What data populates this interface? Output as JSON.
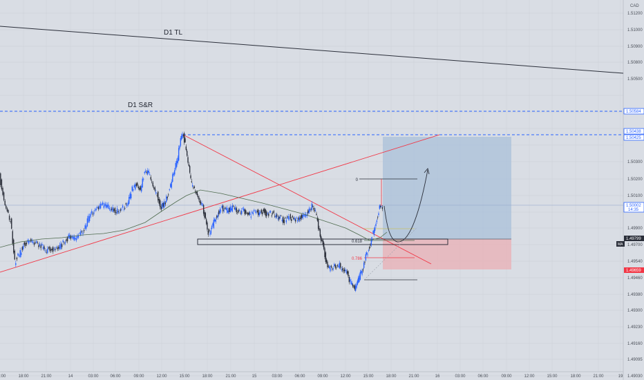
{
  "chart_data": {
    "type": "candlestick",
    "currency": "CAD",
    "y_ticks": [
      "1.51200",
      "1.51000",
      "1.50900",
      "1.50800",
      "1.50500",
      "1.50300",
      "1.50200",
      "1.50100",
      "1.49900",
      "1.49700",
      "1.49540",
      "1.49460",
      "1.49380",
      "1.49300",
      "1.49230",
      "1.49160",
      "1.49095",
      "1.49030"
    ],
    "x_ticks": [
      "18:00",
      "21:00",
      "14",
      "03:00",
      "06:00",
      "09:00",
      "12:00",
      "15:00",
      "18:00",
      "21:00",
      "15",
      "03:00",
      "06:00",
      "09:00",
      "12:00",
      "15:00",
      "18:00",
      "21:00",
      "16",
      "03:00",
      "06:00",
      "09:00",
      "12:00",
      "15:00",
      "18:00",
      "21:00",
      "19"
    ],
    "first_tick": ":00",
    "price_labels": [
      {
        "text": "1.50584",
        "color": "#2962ff",
        "style": "outline"
      },
      {
        "text": "1.50438",
        "color": "#2962ff",
        "style": "outline"
      },
      {
        "text": "1.50425",
        "color": "#2962ff",
        "style": "outline"
      },
      {
        "text": "1.50002",
        "sub": "14:35",
        "color": "#2962ff",
        "style": "outline"
      },
      {
        "text": "1.49799",
        "color": "#2a2e39",
        "style": "solid"
      },
      {
        "text": "1.49659",
        "color": "#f23645",
        "style": "solid"
      }
    ],
    "ma_label": "MA",
    "annotations": {
      "trendline_label": "D1 TL",
      "sr_label": "D1 S&R",
      "fib_0": "0",
      "fib_618": "0.618",
      "fib_786": "0.786"
    },
    "colors": {
      "background": "#d9dde4",
      "up_candle": "#2962ff",
      "down_candle": "#2a2e39",
      "ma": "#4e6b4e",
      "trend_red": "#f23645",
      "level_blue": "#2962ff",
      "profit_zone": "#a9c0da",
      "loss_zone": "#e9b3b8"
    }
  }
}
